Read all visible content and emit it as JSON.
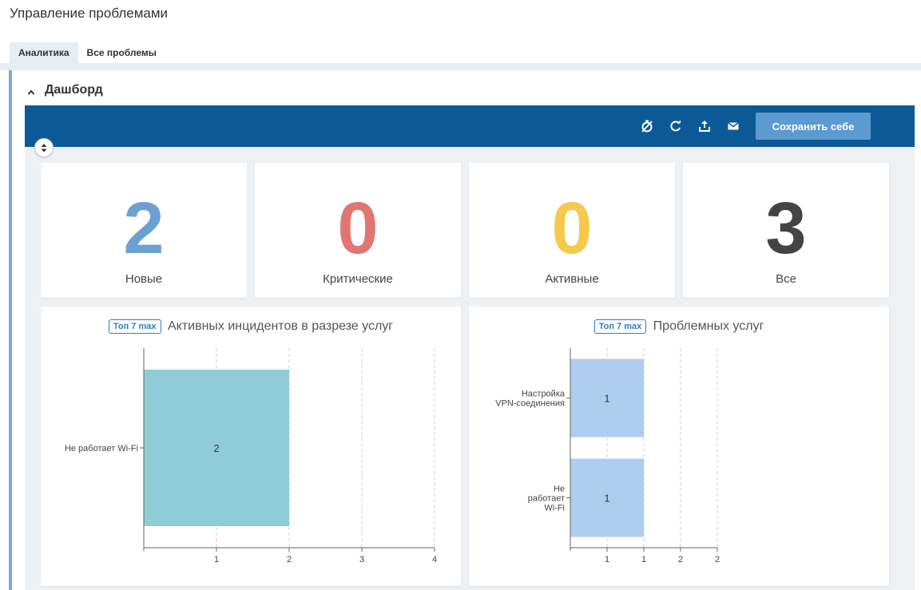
{
  "page": {
    "title": "Управление проблемами"
  },
  "tabs": [
    {
      "label": "Аналитика",
      "active": true
    },
    {
      "label": "Все проблемы",
      "active": false
    }
  ],
  "section": {
    "title": "Дашборд"
  },
  "toolbar": {
    "icons": [
      "timer-off-icon",
      "refresh-icon",
      "export-icon",
      "mail-icon"
    ],
    "save_label": "Сохранить себе"
  },
  "kpis": [
    {
      "value": "2",
      "label": "Новые",
      "color": "#6ba0d2"
    },
    {
      "value": "0",
      "label": "Критические",
      "color": "#e07572"
    },
    {
      "value": "0",
      "label": "Активные",
      "color": "#f5c94a"
    },
    {
      "value": "3",
      "label": "Все",
      "color": "#444444"
    }
  ],
  "charts": [
    {
      "badge": "Топ 7 max",
      "title": "Активных инцидентов в разрезе услуг"
    },
    {
      "badge": "Топ 7 max",
      "title": "Проблемных услуг"
    }
  ],
  "chart_data": [
    {
      "type": "bar",
      "orientation": "horizontal",
      "categories": [
        "Не работает Wi-Fi"
      ],
      "values": [
        2
      ],
      "data_labels": [
        "2"
      ],
      "x_ticks": [
        "1",
        "2",
        "3",
        "4"
      ],
      "xlim": [
        0,
        4
      ],
      "color": "#8ecdd8",
      "grid": true
    },
    {
      "type": "bar",
      "orientation": "horizontal",
      "categories": [
        [
          "Настройка",
          "VPN-соединения"
        ],
        [
          "Не",
          "работает",
          "Wi-Fi"
        ]
      ],
      "values": [
        1,
        1
      ],
      "data_labels": [
        "1",
        "1"
      ],
      "x_ticks": [
        "1",
        "1",
        "2",
        "2"
      ],
      "xlim": [
        0,
        2
      ],
      "color": "#aecdee",
      "grid": true
    }
  ]
}
